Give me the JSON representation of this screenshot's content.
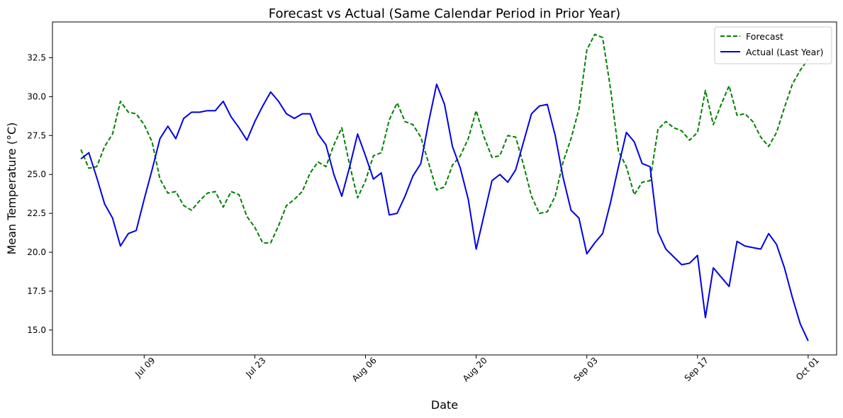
{
  "chart_data": {
    "type": "line",
    "title": "Forecast vs Actual (Same Calendar Period in Prior Year)",
    "xlabel": "Date",
    "ylabel": "Mean Temperature (°C)",
    "x_start": "Jul 01",
    "x_ticks": [
      {
        "label": "Jul 09",
        "day": 8
      },
      {
        "label": "Jul 23",
        "day": 22
      },
      {
        "label": "Aug 06",
        "day": 36
      },
      {
        "label": "Aug 20",
        "day": 50
      },
      {
        "label": "Sep 03",
        "day": 64
      },
      {
        "label": "Sep 17",
        "day": 78
      },
      {
        "label": "Oct 01",
        "day": 92
      }
    ],
    "y_ticks": [
      15.0,
      17.5,
      20.0,
      22.5,
      25.0,
      27.5,
      30.0,
      32.5
    ],
    "xlim": [
      -3.6,
      95.6
    ],
    "ylim": [
      13.4,
      34.8
    ],
    "grid": false,
    "legend_position": "top-right",
    "series": [
      {
        "name": "Forecast",
        "color": "#008000",
        "style": "dashed",
        "values": [
          26.6,
          25.4,
          25.5,
          26.8,
          27.6,
          29.7,
          29.0,
          28.9,
          28.2,
          27.1,
          24.7,
          23.8,
          23.9,
          23.0,
          22.7,
          23.3,
          23.8,
          23.9,
          22.9,
          23.9,
          23.7,
          22.3,
          21.6,
          20.6,
          20.6,
          21.7,
          23.0,
          23.4,
          23.9,
          25.1,
          25.8,
          25.5,
          26.9,
          28.0,
          25.6,
          23.5,
          24.6,
          26.2,
          26.4,
          28.5,
          29.6,
          28.4,
          28.2,
          27.4,
          25.7,
          24.0,
          24.2,
          25.6,
          26.2,
          27.3,
          29.1,
          27.4,
          26.1,
          26.2,
          27.5,
          27.4,
          25.6,
          23.6,
          22.5,
          22.6,
          23.6,
          25.8,
          27.3,
          29.2,
          33.0,
          34.0,
          33.8,
          30.5,
          26.5,
          25.5,
          23.7,
          24.5,
          24.6,
          27.9,
          28.4,
          28.0,
          27.8,
          27.2,
          27.7,
          30.4,
          28.2,
          29.5,
          30.7,
          28.8,
          28.9,
          28.4,
          27.4,
          26.8,
          27.7,
          29.3,
          30.8,
          31.7,
          32.4
        ]
      },
      {
        "name": "Actual (Last Year)",
        "color": "#0000e6",
        "style": "solid",
        "values": [
          26.0,
          26.4,
          24.8,
          23.1,
          22.2,
          20.4,
          21.2,
          21.4,
          23.4,
          25.3,
          27.3,
          28.1,
          27.3,
          28.6,
          29.0,
          29.0,
          29.1,
          29.1,
          29.7,
          28.7,
          28.0,
          27.2,
          28.4,
          29.4,
          30.3,
          29.7,
          28.9,
          28.6,
          28.9,
          28.9,
          27.6,
          26.9,
          25.0,
          23.6,
          25.5,
          27.6,
          26.2,
          24.7,
          25.1,
          22.4,
          22.5,
          23.6,
          24.9,
          25.7,
          28.4,
          30.8,
          29.5,
          26.8,
          25.4,
          23.4,
          20.2,
          22.4,
          24.6,
          25.0,
          24.5,
          25.3,
          27.1,
          28.9,
          29.4,
          29.5,
          27.5,
          24.8,
          22.7,
          22.2,
          19.9,
          20.6,
          21.2,
          23.2,
          25.5,
          27.7,
          27.1,
          25.7,
          25.5,
          21.3,
          20.2,
          19.7,
          19.2,
          19.3,
          19.8,
          15.8,
          19.0,
          18.4,
          17.8,
          20.7,
          20.4,
          20.3,
          20.2,
          21.2,
          20.5,
          19.0,
          17.1,
          15.4,
          14.3
        ]
      }
    ]
  }
}
